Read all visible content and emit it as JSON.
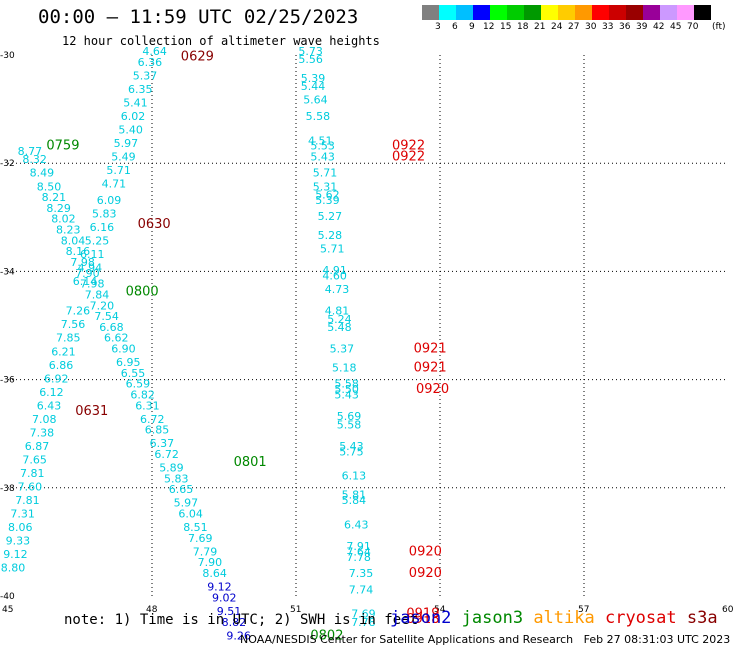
{
  "header": {
    "title": "00:00 – 11:59 UTC 02/25/2023",
    "subtitle": "12 hour collection of altimeter wave heights"
  },
  "legend": {
    "unit": "(ft)",
    "colors": [
      "#808080",
      "#00ffff",
      "#00bfff",
      "#0000ff",
      "#00ff00",
      "#00cc00",
      "#009900",
      "#ffff00",
      "#ffcc00",
      "#ff9900",
      "#ff0000",
      "#cc0000",
      "#990000",
      "#990099",
      "#cc99ff",
      "#ff99ff",
      "#000000"
    ],
    "labels": [
      "3",
      "6",
      "9",
      "12",
      "15",
      "18",
      "21",
      "24",
      "27",
      "30",
      "33",
      "36",
      "39",
      "42",
      "45",
      "70"
    ]
  },
  "chart_data": {
    "type": "scatter",
    "xlim": [
      45,
      60
    ],
    "ylim": [
      -40,
      -30
    ],
    "x_ticks": [
      "45",
      "48",
      "51",
      "54",
      "57",
      "60"
    ],
    "y_ticks": [
      "-30",
      "-32",
      "-34",
      "-36",
      "-38",
      "-40"
    ],
    "grid": true,
    "series": [
      {
        "name": "track-1 (cyan, 0629-0631)",
        "color": "#00ccdd",
        "points": [
          {
            "x": 47.8,
            "y": -30.0,
            "v": "4.64"
          },
          {
            "x": 47.7,
            "y": -30.2,
            "v": "6.36"
          },
          {
            "x": 47.6,
            "y": -30.45,
            "v": "5.37"
          },
          {
            "x": 47.5,
            "y": -30.7,
            "v": "6.35"
          },
          {
            "x": 47.4,
            "y": -30.95,
            "v": "5.41"
          },
          {
            "x": 47.35,
            "y": -31.2,
            "v": "6.02"
          },
          {
            "x": 47.3,
            "y": -31.45,
            "v": "5.40"
          },
          {
            "x": 47.2,
            "y": -31.7,
            "v": "5.97"
          },
          {
            "x": 47.15,
            "y": -31.95,
            "v": "5.49"
          },
          {
            "x": 47.05,
            "y": -32.2,
            "v": "5.71"
          },
          {
            "x": 46.95,
            "y": -32.45,
            "v": "4.71"
          },
          {
            "x": 46.85,
            "y": -32.75,
            "v": "6.09"
          },
          {
            "x": 46.75,
            "y": -33.0,
            "v": "5.83"
          },
          {
            "x": 46.7,
            "y": -33.25,
            "v": "6.16"
          },
          {
            "x": 46.6,
            "y": -33.5,
            "v": "5.25"
          },
          {
            "x": 46.5,
            "y": -33.75,
            "v": "6.11"
          },
          {
            "x": 46.45,
            "y": -34.0,
            "v": "4.94"
          },
          {
            "x": 46.35,
            "y": -34.25,
            "v": "6.14"
          },
          {
            "x": 46.2,
            "y": -34.8,
            "v": "7.26"
          },
          {
            "x": 46.1,
            "y": -35.05,
            "v": "7.56"
          },
          {
            "x": 46.0,
            "y": -35.3,
            "v": "7.85"
          },
          {
            "x": 45.9,
            "y": -35.55,
            "v": "6.21"
          },
          {
            "x": 45.85,
            "y": -35.8,
            "v": "6.86"
          },
          {
            "x": 45.75,
            "y": -36.05,
            "v": "6.92"
          },
          {
            "x": 45.65,
            "y": -36.3,
            "v": "6.12"
          },
          {
            "x": 45.6,
            "y": -36.55,
            "v": "6.43"
          },
          {
            "x": 45.5,
            "y": -36.8,
            "v": "7.08"
          },
          {
            "x": 45.45,
            "y": -37.05,
            "v": "7.38"
          },
          {
            "x": 45.35,
            "y": -37.3,
            "v": "6.87"
          },
          {
            "x": 45.3,
            "y": -37.55,
            "v": "7.65"
          },
          {
            "x": 45.25,
            "y": -37.8,
            "v": "7.81"
          },
          {
            "x": 45.2,
            "y": -38.05,
            "v": "7.60"
          },
          {
            "x": 45.15,
            "y": -38.3,
            "v": "7.81"
          },
          {
            "x": 45.05,
            "y": -38.55,
            "v": "7.31"
          },
          {
            "x": 45.0,
            "y": -38.8,
            "v": "8.06"
          },
          {
            "x": 44.95,
            "y": -39.05,
            "v": "9.33"
          },
          {
            "x": 44.9,
            "y": -39.3,
            "v": "9.12"
          },
          {
            "x": 44.85,
            "y": -39.55,
            "v": "8.80"
          }
        ]
      },
      {
        "name": "track-2 (cyan, 0759-0802)",
        "color": "#00ccdd",
        "points": [
          {
            "x": 45.2,
            "y": -31.85,
            "v": "8.77"
          },
          {
            "x": 45.3,
            "y": -32.0,
            "v": "8.32"
          },
          {
            "x": 45.45,
            "y": -32.25,
            "v": "8.49"
          },
          {
            "x": 45.6,
            "y": -32.5,
            "v": "8.50"
          },
          {
            "x": 45.7,
            "y": -32.7,
            "v": "8.21"
          },
          {
            "x": 45.8,
            "y": -32.9,
            "v": "8.29"
          },
          {
            "x": 45.9,
            "y": -33.1,
            "v": "8.02"
          },
          {
            "x": 46.0,
            "y": -33.3,
            "v": "8.23"
          },
          {
            "x": 46.1,
            "y": -33.5,
            "v": "8.04"
          },
          {
            "x": 46.2,
            "y": -33.7,
            "v": "8.16"
          },
          {
            "x": 46.3,
            "y": -33.9,
            "v": "7.98"
          },
          {
            "x": 46.4,
            "y": -34.1,
            "v": "7.90"
          },
          {
            "x": 46.5,
            "y": -34.3,
            "v": "7.98"
          },
          {
            "x": 46.6,
            "y": -34.5,
            "v": "7.84"
          },
          {
            "x": 46.7,
            "y": -34.7,
            "v": "7.20"
          },
          {
            "x": 46.8,
            "y": -34.9,
            "v": "7.54"
          },
          {
            "x": 46.9,
            "y": -35.1,
            "v": "6.68"
          },
          {
            "x": 47.0,
            "y": -35.3,
            "v": "6.62"
          },
          {
            "x": 47.15,
            "y": -35.5,
            "v": "6.90"
          },
          {
            "x": 47.25,
            "y": -35.75,
            "v": "6.95"
          },
          {
            "x": 47.35,
            "y": -35.95,
            "v": "6.55"
          },
          {
            "x": 47.45,
            "y": -36.15,
            "v": "6.59"
          },
          {
            "x": 47.55,
            "y": -36.35,
            "v": "6.82"
          },
          {
            "x": 47.65,
            "y": -36.55,
            "v": "6.31"
          },
          {
            "x": 47.75,
            "y": -36.8,
            "v": "6.72"
          },
          {
            "x": 47.85,
            "y": -37.0,
            "v": "6.85"
          },
          {
            "x": 47.95,
            "y": -37.25,
            "v": "6.37"
          },
          {
            "x": 48.05,
            "y": -37.45,
            "v": "6.72"
          },
          {
            "x": 48.15,
            "y": -37.7,
            "v": "5.89"
          },
          {
            "x": 48.25,
            "y": -37.9,
            "v": "5.83"
          },
          {
            "x": 48.35,
            "y": -38.1,
            "v": "6.65"
          },
          {
            "x": 48.45,
            "y": -38.35,
            "v": "5.97"
          },
          {
            "x": 48.55,
            "y": -38.55,
            "v": "6.04"
          },
          {
            "x": 48.65,
            "y": -38.8,
            "v": "8.51"
          },
          {
            "x": 48.75,
            "y": -39.0,
            "v": "7.69"
          },
          {
            "x": 48.85,
            "y": -39.25,
            "v": "7.79"
          },
          {
            "x": 48.95,
            "y": -39.45,
            "v": "7.90"
          },
          {
            "x": 49.05,
            "y": -39.65,
            "v": "8.64"
          }
        ]
      },
      {
        "name": "track-2 tail (blue)",
        "color": "#0000cc",
        "points": [
          {
            "x": 49.15,
            "y": -39.9,
            "v": "9.12"
          },
          {
            "x": 49.25,
            "y": -40.1,
            "v": "9.02"
          },
          {
            "x": 49.35,
            "y": -40.35,
            "v": "9.51"
          },
          {
            "x": 49.45,
            "y": -40.55,
            "v": "8.82"
          },
          {
            "x": 49.55,
            "y": -40.8,
            "v": "9.26"
          }
        ]
      },
      {
        "name": "track-3 (cyan, 0918-0922)",
        "color": "#00ccdd",
        "points": [
          {
            "x": 51.05,
            "y": -30.0,
            "v": "5.73"
          },
          {
            "x": 51.05,
            "y": -30.15,
            "v": "5.56"
          },
          {
            "x": 51.1,
            "y": -30.5,
            "v": "5.39"
          },
          {
            "x": 51.1,
            "y": -30.65,
            "v": "5.44"
          },
          {
            "x": 51.15,
            "y": -30.9,
            "v": "5.64"
          },
          {
            "x": 51.2,
            "y": -31.2,
            "v": "5.58"
          },
          {
            "x": 51.25,
            "y": -31.65,
            "v": "4.51"
          },
          {
            "x": 51.3,
            "y": -31.75,
            "v": "5.53"
          },
          {
            "x": 51.3,
            "y": -31.95,
            "v": "5.43"
          },
          {
            "x": 51.35,
            "y": -32.25,
            "v": "5.71"
          },
          {
            "x": 51.35,
            "y": -32.5,
            "v": "5.31"
          },
          {
            "x": 51.4,
            "y": -32.65,
            "v": "5.62"
          },
          {
            "x": 51.4,
            "y": -32.75,
            "v": "5.39"
          },
          {
            "x": 51.45,
            "y": -33.05,
            "v": "5.27"
          },
          {
            "x": 51.45,
            "y": -33.4,
            "v": "5.28"
          },
          {
            "x": 51.5,
            "y": -33.65,
            "v": "5.71"
          },
          {
            "x": 51.55,
            "y": -34.05,
            "v": "4.91"
          },
          {
            "x": 51.55,
            "y": -34.15,
            "v": "4.60"
          },
          {
            "x": 51.6,
            "y": -34.4,
            "v": "4.73"
          },
          {
            "x": 51.6,
            "y": -34.8,
            "v": "4.81"
          },
          {
            "x": 51.65,
            "y": -34.95,
            "v": "5.24"
          },
          {
            "x": 51.65,
            "y": -35.1,
            "v": "5.48"
          },
          {
            "x": 51.7,
            "y": -35.5,
            "v": "5.37"
          },
          {
            "x": 51.75,
            "y": -35.85,
            "v": "5.18"
          },
          {
            "x": 51.8,
            "y": -36.15,
            "v": "5.58"
          },
          {
            "x": 51.8,
            "y": -36.25,
            "v": "5.50"
          },
          {
            "x": 51.8,
            "y": -36.35,
            "v": "5.43"
          },
          {
            "x": 51.85,
            "y": -36.75,
            "v": "5.69"
          },
          {
            "x": 51.85,
            "y": -36.9,
            "v": "5.58"
          },
          {
            "x": 51.9,
            "y": -37.3,
            "v": "5.43"
          },
          {
            "x": 51.9,
            "y": -37.4,
            "v": "5.75"
          },
          {
            "x": 51.95,
            "y": -37.85,
            "v": "6.13"
          },
          {
            "x": 51.95,
            "y": -38.2,
            "v": "5.81"
          },
          {
            "x": 51.95,
            "y": -38.3,
            "v": "5.84"
          },
          {
            "x": 52.0,
            "y": -38.75,
            "v": "6.43"
          },
          {
            "x": 52.05,
            "y": -39.15,
            "v": "7.91"
          },
          {
            "x": 52.05,
            "y": -39.25,
            "v": "7.64"
          },
          {
            "x": 52.05,
            "y": -39.35,
            "v": "7.78"
          },
          {
            "x": 52.1,
            "y": -39.65,
            "v": "7.35"
          },
          {
            "x": 52.1,
            "y": -39.95,
            "v": "7.74"
          },
          {
            "x": 52.15,
            "y": -40.4,
            "v": "7.69"
          },
          {
            "x": 52.15,
            "y": -40.55,
            "v": "7.78"
          }
        ]
      }
    ],
    "time_labels": [
      {
        "text": "0629",
        "color": "#880000",
        "x": 48.6,
        "y": -30.1
      },
      {
        "text": "0759",
        "color": "#008800",
        "x": 45.8,
        "y": -31.75
      },
      {
        "text": "0630",
        "color": "#880000",
        "x": 47.7,
        "y": -33.2
      },
      {
        "text": "0800",
        "color": "#008800",
        "x": 47.45,
        "y": -34.45
      },
      {
        "text": "0631",
        "color": "#880000",
        "x": 46.4,
        "y": -36.65
      },
      {
        "text": "0801",
        "color": "#008800",
        "x": 49.7,
        "y": -37.6
      },
      {
        "text": "0802",
        "color": "#008800",
        "x": 51.3,
        "y": -40.8
      },
      {
        "text": "0922",
        "color": "#dd0000",
        "x": 53.0,
        "y": -31.75
      },
      {
        "text": "0922",
        "color": "#dd0000",
        "x": 53.0,
        "y": -31.95
      },
      {
        "text": "0921",
        "color": "#dd0000",
        "x": 53.45,
        "y": -35.5
      },
      {
        "text": "0921",
        "color": "#dd0000",
        "x": 53.45,
        "y": -35.85
      },
      {
        "text": "0920",
        "color": "#dd0000",
        "x": 53.5,
        "y": -36.25
      },
      {
        "text": "0920",
        "color": "#dd0000",
        "x": 53.35,
        "y": -39.25
      },
      {
        "text": "0920",
        "color": "#dd0000",
        "x": 53.35,
        "y": -39.65
      },
      {
        "text": "0919",
        "color": "#dd0000",
        "x": 53.3,
        "y": -40.4
      },
      {
        "text": "0918",
        "color": "#dd0000",
        "x": 53.3,
        "y": -40.5
      }
    ]
  },
  "footer": {
    "note": "note: 1) Time is in UTC; 2) SWH is in feet",
    "satellites": [
      {
        "name": "jason2",
        "color": "#0000cc"
      },
      {
        "name": "jason3",
        "color": "#008800"
      },
      {
        "name": "altika",
        "color": "#ff9900"
      },
      {
        "name": "cryosat",
        "color": "#dd0000"
      },
      {
        "name": "s3a",
        "color": "#880000"
      }
    ],
    "credit": "NOAA/NESDIS Center for Satellite Applications and Research   Feb 27 08:31:03 UTC 2023"
  }
}
